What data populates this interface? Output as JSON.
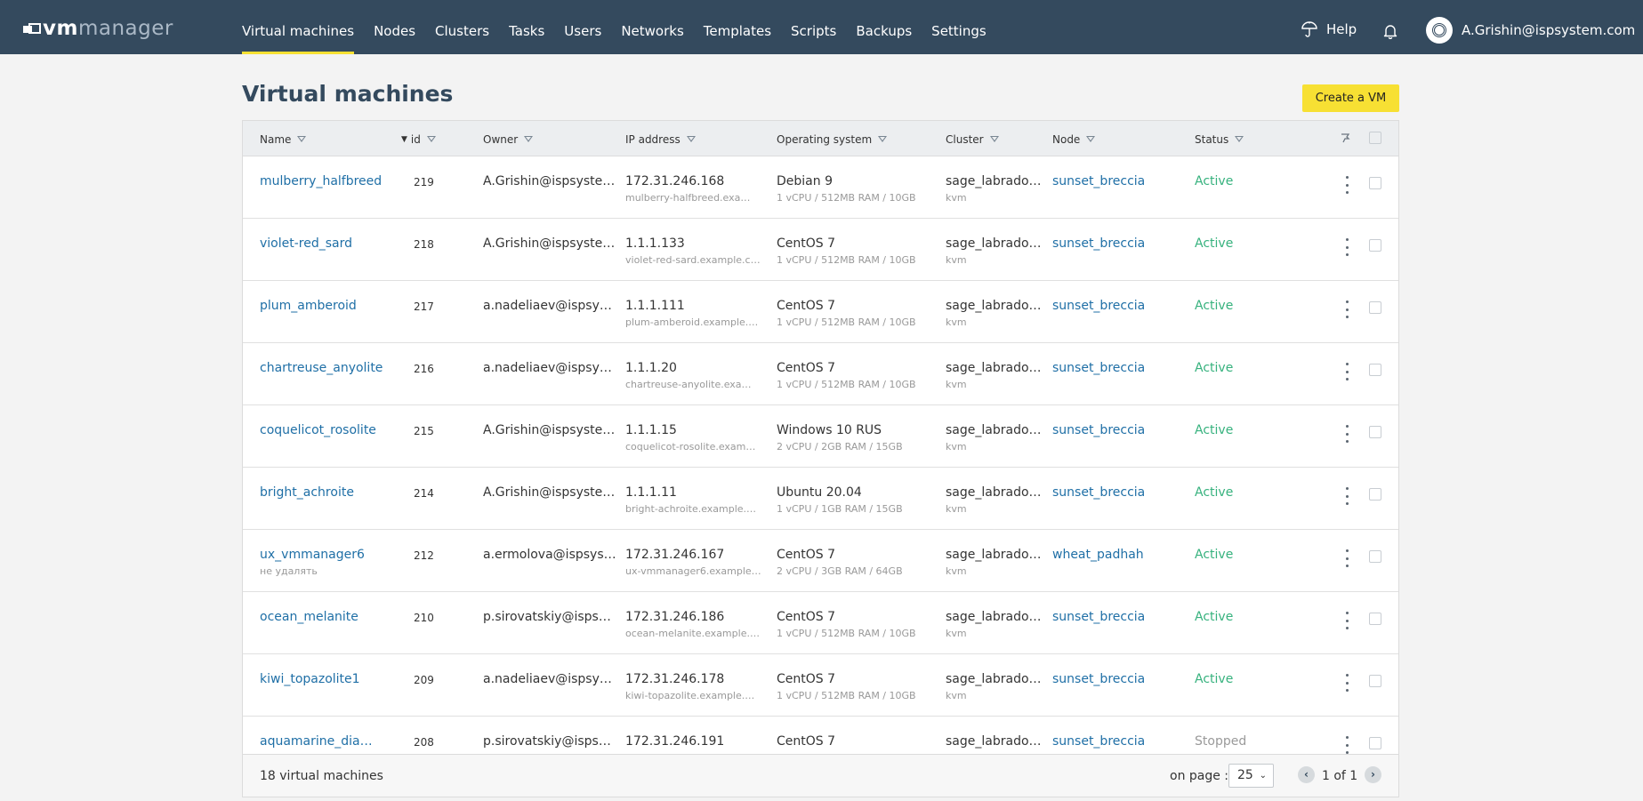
{
  "header": {
    "logo_vm": "vm",
    "logo_manager": "manager",
    "nav": [
      "Virtual machines",
      "Nodes",
      "Clusters",
      "Tasks",
      "Users",
      "Networks",
      "Templates",
      "Scripts",
      "Backups",
      "Settings"
    ],
    "active_nav": "Virtual machines",
    "help_label": "Help",
    "user_email": "A.Grishin@ispsystem.com"
  },
  "page": {
    "title": "Virtual machines",
    "create_button": "Create a VM"
  },
  "table": {
    "columns": {
      "name": "Name",
      "id": "id",
      "owner": "Owner",
      "ip": "IP address",
      "os": "Operating system",
      "cluster": "Cluster",
      "node": "Node",
      "status": "Status"
    },
    "rows": [
      {
        "name": "mulberry_halfbreed",
        "note": "",
        "id": "219",
        "owner": "A.Grishin@ispsyste…",
        "ip": "172.31.246.168",
        "domain": "mulberry-halfbreed.exa…",
        "os": "Debian 9",
        "spec": "1 vCPU / 512MB RAM / 10GB",
        "cluster": "sage_labrado…",
        "cluster_type": "kvm",
        "node": "sunset_breccia",
        "status": "Active"
      },
      {
        "name": "violet-red_sard",
        "note": "",
        "id": "218",
        "owner": "A.Grishin@ispsyste…",
        "ip": "1.1.1.133",
        "domain": "violet-red-sard.example.c…",
        "os": "CentOS 7",
        "spec": "1 vCPU / 512MB RAM / 10GB",
        "cluster": "sage_labrado…",
        "cluster_type": "kvm",
        "node": "sunset_breccia",
        "status": "Active"
      },
      {
        "name": "plum_amberoid",
        "note": "",
        "id": "217",
        "owner": "a.nadeliaev@ispsys…",
        "ip": "1.1.1.111",
        "domain": "plum-amberoid.example.…",
        "os": "CentOS 7",
        "spec": "1 vCPU / 512MB RAM / 10GB",
        "cluster": "sage_labrado…",
        "cluster_type": "kvm",
        "node": "sunset_breccia",
        "status": "Active"
      },
      {
        "name": "chartreuse_anyolite",
        "note": "",
        "id": "216",
        "owner": "a.nadeliaev@ispsys…",
        "ip": "1.1.1.20",
        "domain": "chartreuse-anyolite.exa…",
        "os": "CentOS 7",
        "spec": "1 vCPU / 512MB RAM / 10GB",
        "cluster": "sage_labrado…",
        "cluster_type": "kvm",
        "node": "sunset_breccia",
        "status": "Active"
      },
      {
        "name": "coquelicot_rosolite",
        "note": "",
        "id": "215",
        "owner": "A.Grishin@ispsyste…",
        "ip": "1.1.1.15",
        "domain": "coquelicot-rosolite.exam…",
        "os": "Windows 10 RUS",
        "spec": "2 vCPU / 2GB RAM / 15GB",
        "cluster": "sage_labrado…",
        "cluster_type": "kvm",
        "node": "sunset_breccia",
        "status": "Active"
      },
      {
        "name": "bright_achroite",
        "note": "",
        "id": "214",
        "owner": "A.Grishin@ispsyste…",
        "ip": "1.1.1.11",
        "domain": "bright-achroite.example.…",
        "os": "Ubuntu 20.04",
        "spec": "1 vCPU / 1GB RAM / 15GB",
        "cluster": "sage_labrado…",
        "cluster_type": "kvm",
        "node": "sunset_breccia",
        "status": "Active"
      },
      {
        "name": "ux_vmmanager6",
        "note": "не удалять",
        "id": "212",
        "owner": "a.ermolova@ispsys…",
        "ip": "172.31.246.167",
        "domain": "ux-vmmanager6.example…",
        "os": "CentOS 7",
        "spec": "2 vCPU / 3GB RAM / 64GB",
        "cluster": "sage_labrado…",
        "cluster_type": "kvm",
        "node": "wheat_padhah",
        "status": "Active"
      },
      {
        "name": "ocean_melanite",
        "note": "",
        "id": "210",
        "owner": "p.sirovatskiy@ispsy…",
        "ip": "172.31.246.186",
        "domain": "ocean-melanite.example.…",
        "os": "CentOS 7",
        "spec": "1 vCPU / 512MB RAM / 10GB",
        "cluster": "sage_labrado…",
        "cluster_type": "kvm",
        "node": "sunset_breccia",
        "status": "Active"
      },
      {
        "name": "kiwi_topazolite1",
        "note": "",
        "id": "209",
        "owner": "a.nadeliaev@ispsys…",
        "ip": "172.31.246.178",
        "domain": "kiwi-topazolite.example.…",
        "os": "CentOS 7",
        "spec": "1 vCPU / 512MB RAM / 10GB",
        "cluster": "sage_labrado…",
        "cluster_type": "kvm",
        "node": "sunset_breccia",
        "status": "Active"
      },
      {
        "name": "aquamarine_diamon…",
        "note": "",
        "id": "208",
        "owner": "p.sirovatskiy@ispsy…",
        "ip": "172.31.246.191",
        "domain": "",
        "os": "CentOS 7",
        "spec": "",
        "cluster": "sage_labrado…",
        "cluster_type": "",
        "node": "sunset_breccia",
        "status": "Stopped"
      }
    ]
  },
  "footer": {
    "count": "18 virtual machines",
    "on_page_label": "on page :",
    "page_size": "25",
    "page_info": "1 of 1"
  },
  "colors": {
    "header_bg": "#344a5e",
    "accent": "#f7e033",
    "link": "#1f6fa6",
    "active": "#37b27e"
  }
}
